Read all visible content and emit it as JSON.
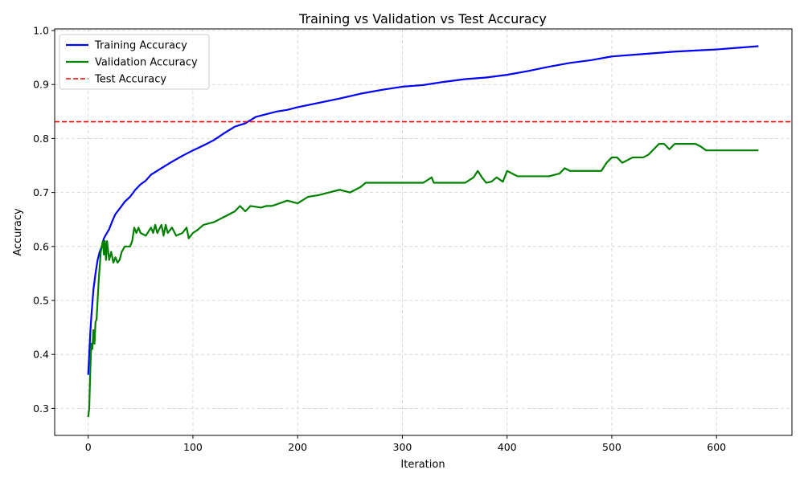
{
  "chart_data": {
    "type": "line",
    "title": "Training vs Validation vs Test Accuracy",
    "xlabel": "Iteration",
    "ylabel": "Accuracy",
    "xlim": [
      -32,
      672
    ],
    "ylim": [
      0.25,
      1.003
    ],
    "xticks": [
      0,
      100,
      200,
      300,
      400,
      500,
      600
    ],
    "yticks": [
      0.3,
      0.4,
      0.5,
      0.6,
      0.7,
      0.8,
      0.9,
      1.0
    ],
    "grid": true,
    "legend_position": "upper-left",
    "series": [
      {
        "name": "Training Accuracy",
        "color": "#0000ff",
        "style": "solid",
        "x": [
          0,
          1,
          2,
          3,
          5,
          7,
          9,
          11,
          13,
          15,
          17,
          20,
          23,
          26,
          30,
          35,
          40,
          45,
          50,
          55,
          60,
          70,
          80,
          90,
          100,
          110,
          120,
          130,
          140,
          150,
          160,
          170,
          180,
          190,
          200,
          220,
          240,
          260,
          280,
          300,
          320,
          340,
          360,
          380,
          400,
          420,
          440,
          460,
          480,
          500,
          520,
          540,
          560,
          580,
          600,
          620,
          640
        ],
        "y": [
          0.362,
          0.4,
          0.44,
          0.47,
          0.52,
          0.55,
          0.575,
          0.59,
          0.6,
          0.615,
          0.622,
          0.632,
          0.647,
          0.66,
          0.67,
          0.683,
          0.692,
          0.705,
          0.715,
          0.722,
          0.733,
          0.745,
          0.757,
          0.768,
          0.778,
          0.787,
          0.797,
          0.81,
          0.822,
          0.828,
          0.84,
          0.845,
          0.85,
          0.853,
          0.858,
          0.866,
          0.874,
          0.883,
          0.89,
          0.896,
          0.899,
          0.905,
          0.91,
          0.913,
          0.918,
          0.925,
          0.933,
          0.94,
          0.945,
          0.952,
          0.955,
          0.958,
          0.961,
          0.963,
          0.965,
          0.968,
          0.971
        ]
      },
      {
        "name": "Validation Accuracy",
        "color": "#008000",
        "style": "solid",
        "x": [
          0,
          1,
          2,
          3,
          4,
          5,
          6,
          7,
          8,
          10,
          12,
          14,
          15,
          16,
          17,
          18,
          20,
          22,
          24,
          26,
          28,
          30,
          32,
          35,
          40,
          42,
          44,
          46,
          48,
          50,
          55,
          60,
          62,
          64,
          66,
          70,
          72,
          74,
          76,
          80,
          84,
          90,
          94,
          96,
          100,
          104,
          110,
          120,
          130,
          140,
          145,
          150,
          155,
          165,
          170,
          175,
          180,
          190,
          200,
          210,
          220,
          230,
          240,
          250,
          260,
          265,
          280,
          300,
          320,
          328,
          330,
          340,
          360,
          368,
          372,
          376,
          380,
          385,
          390,
          396,
          400,
          405,
          410,
          420,
          440,
          450,
          455,
          460,
          480,
          490,
          495,
          500,
          505,
          510,
          520,
          530,
          535,
          540,
          545,
          550,
          555,
          560,
          570,
          580,
          585,
          590,
          600,
          620,
          640
        ],
        "y": [
          0.284,
          0.3,
          0.37,
          0.42,
          0.41,
          0.445,
          0.42,
          0.46,
          0.465,
          0.535,
          0.59,
          0.61,
          0.585,
          0.61,
          0.575,
          0.61,
          0.575,
          0.59,
          0.57,
          0.58,
          0.57,
          0.575,
          0.59,
          0.6,
          0.6,
          0.61,
          0.635,
          0.625,
          0.635,
          0.625,
          0.62,
          0.635,
          0.625,
          0.64,
          0.625,
          0.64,
          0.62,
          0.64,
          0.625,
          0.635,
          0.62,
          0.625,
          0.635,
          0.615,
          0.625,
          0.63,
          0.64,
          0.645,
          0.655,
          0.665,
          0.675,
          0.665,
          0.675,
          0.672,
          0.675,
          0.675,
          0.678,
          0.685,
          0.68,
          0.692,
          0.695,
          0.7,
          0.705,
          0.7,
          0.71,
          0.718,
          0.718,
          0.718,
          0.718,
          0.728,
          0.718,
          0.718,
          0.718,
          0.728,
          0.74,
          0.728,
          0.718,
          0.72,
          0.728,
          0.72,
          0.74,
          0.735,
          0.73,
          0.73,
          0.73,
          0.735,
          0.745,
          0.74,
          0.74,
          0.74,
          0.755,
          0.765,
          0.765,
          0.755,
          0.765,
          0.765,
          0.77,
          0.78,
          0.79,
          0.79,
          0.78,
          0.79,
          0.79,
          0.79,
          0.785,
          0.778,
          0.778,
          0.778,
          0.778
        ]
      },
      {
        "name": "Test Accuracy",
        "color": "#ff0000",
        "style": "dashed",
        "type": "hline",
        "y": 0.831
      }
    ]
  }
}
